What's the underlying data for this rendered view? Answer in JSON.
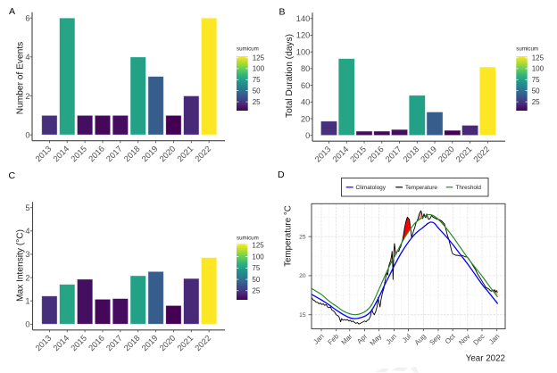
{
  "chart_data": [
    {
      "panel_label": "A",
      "type": "bar",
      "title": "",
      "categories": [
        "2013",
        "2014",
        "2015",
        "2016",
        "2017",
        "2018",
        "2019",
        "2020",
        "2021",
        "2022"
      ],
      "values": [
        1,
        6,
        1,
        1,
        1,
        4,
        3,
        1,
        2,
        6
      ],
      "fill_by": "sumicum",
      "sumicum": [
        22,
        77,
        10,
        7,
        9,
        75,
        41,
        5,
        19,
        128
      ],
      "xlabel": "",
      "ylabel": "Number of Events",
      "ylim": [
        -0.3,
        6.3
      ],
      "yticks": [
        0,
        2,
        4,
        6
      ],
      "grid": false,
      "legend": {
        "title": "sumicum",
        "type": "colorbar",
        "colormap": "viridis",
        "range": [
          5,
          128
        ],
        "ticks": [
          25,
          50,
          75,
          100,
          125
        ],
        "position": "right"
      }
    },
    {
      "panel_label": "B",
      "type": "bar",
      "title": "",
      "categories": [
        "2013",
        "2014",
        "2015",
        "2016",
        "2017",
        "2018",
        "2019",
        "2020",
        "2021",
        "2022"
      ],
      "values": [
        17,
        92,
        5,
        5,
        7,
        48,
        28,
        6,
        12,
        82
      ],
      "fill_by": "sumicum",
      "sumicum": [
        22,
        77,
        10,
        7,
        9,
        75,
        41,
        5,
        19,
        128
      ],
      "xlabel": "",
      "ylabel": "Total Duration (days)",
      "ylim": [
        -7,
        147
      ],
      "yticks": [
        0,
        20,
        40,
        60,
        80,
        100,
        120,
        140
      ],
      "grid": false,
      "legend": {
        "title": "sumicum",
        "type": "colorbar",
        "colormap": "viridis",
        "range": [
          5,
          128
        ],
        "ticks": [
          25,
          50,
          75,
          100,
          125
        ],
        "position": "right"
      }
    },
    {
      "panel_label": "C",
      "type": "bar",
      "title": "",
      "categories": [
        "2013",
        "2014",
        "2015",
        "2016",
        "2017",
        "2018",
        "2019",
        "2020",
        "2021",
        "2022"
      ],
      "values": [
        1.21,
        1.71,
        1.93,
        1.07,
        1.1,
        2.08,
        2.26,
        0.8,
        1.96,
        2.86
      ],
      "fill_by": "sumicum",
      "sumicum": [
        22,
        77,
        10,
        7,
        9,
        75,
        41,
        5,
        19,
        128
      ],
      "xlabel": "",
      "ylabel": "Max Intensity (°C)",
      "ylim": [
        -0.25,
        5.25
      ],
      "yticks": [
        0,
        1,
        2,
        3,
        4,
        5
      ],
      "grid": false,
      "legend": {
        "title": "sumicum",
        "type": "colorbar",
        "colormap": "viridis",
        "range": [
          5,
          128
        ],
        "ticks": [
          25,
          50,
          75,
          100,
          125
        ],
        "position": "right"
      }
    },
    {
      "panel_label": "D",
      "type": "line",
      "title": "",
      "x_origin": "2022-01-01",
      "x_unit": "days",
      "xlabel": "Year 2022",
      "ylabel": "Temperature °C",
      "xlim": [
        -20.4,
        382.2
      ],
      "ylim": [
        13.2,
        29.2
      ],
      "xticks": [
        {
          "day": 0,
          "label": "Jan"
        },
        {
          "day": 31,
          "label": "Feb"
        },
        {
          "day": 59,
          "label": "Mar"
        },
        {
          "day": 90,
          "label": "Apr"
        },
        {
          "day": 120,
          "label": "May"
        },
        {
          "day": 151,
          "label": "Jun"
        },
        {
          "day": 181,
          "label": "Jul"
        },
        {
          "day": 212,
          "label": "Aug"
        },
        {
          "day": 243,
          "label": "Sep"
        },
        {
          "day": 273,
          "label": "Oct"
        },
        {
          "day": 304,
          "label": "Nov"
        },
        {
          "day": 334,
          "label": "Dec"
        },
        {
          "day": 365,
          "label": "Jan"
        }
      ],
      "yticks": [
        15,
        20,
        25
      ],
      "grid": true,
      "legend": {
        "position": "top"
      },
      "series": [
        {
          "name": "Climatology",
          "color": "#0000FF",
          "interpolation": "smooth",
          "points": [
            [
              -20,
              17.6
            ],
            [
              0,
              16.9
            ],
            [
              15,
              16.3
            ],
            [
              31,
              15.6
            ],
            [
              45,
              15.05
            ],
            [
              60,
              14.6
            ],
            [
              70,
              14.5
            ],
            [
              80,
              14.6
            ],
            [
              93,
              14.9
            ],
            [
              105,
              15.6
            ],
            [
              120,
              17.3
            ],
            [
              133,
              19.0
            ],
            [
              143,
              20.2
            ],
            [
              151,
              21.2
            ],
            [
              166,
              22.9
            ],
            [
              181,
              24.3
            ],
            [
              196,
              25.4
            ],
            [
              212,
              26.2
            ],
            [
              222,
              26.7
            ],
            [
              228,
              26.85
            ],
            [
              235,
              26.7
            ],
            [
              243,
              26.1
            ],
            [
              258,
              25.1
            ],
            [
              273,
              24.0
            ],
            [
              289,
              22.7
            ],
            [
              304,
              21.5
            ],
            [
              319,
              20.2
            ],
            [
              334,
              18.9
            ],
            [
              350,
              17.7
            ],
            [
              366,
              16.45
            ]
          ]
        },
        {
          "name": "Temperature",
          "color": "#000000",
          "interpolation": "linear",
          "points": [
            [
              -20,
              17.2
            ],
            [
              -17,
              16.9
            ],
            [
              -14,
              16.8
            ],
            [
              -11,
              16.6
            ],
            [
              -8,
              16.6
            ],
            [
              -5,
              16.4
            ],
            [
              -2,
              16.5
            ],
            [
              1,
              16.3
            ],
            [
              4,
              16.4
            ],
            [
              7,
              16.2
            ],
            [
              10,
              16.3
            ],
            [
              13,
              16.0
            ],
            [
              16,
              15.9
            ],
            [
              19,
              16.0
            ],
            [
              22,
              15.6
            ],
            [
              25,
              15.5
            ],
            [
              28,
              15.3
            ],
            [
              31,
              15.0
            ],
            [
              34,
              14.9
            ],
            [
              37,
              14.7
            ],
            [
              40,
              14.1
            ],
            [
              42,
              14.5
            ],
            [
              45,
              14.3
            ],
            [
              48,
              14.4
            ],
            [
              51,
              14.3
            ],
            [
              54,
              14.4
            ],
            [
              57,
              14.2
            ],
            [
              60,
              14.3
            ],
            [
              63,
              14.1
            ],
            [
              66,
              14.2
            ],
            [
              69,
              14.0
            ],
            [
              72,
              13.9
            ],
            [
              75,
              14.0
            ],
            [
              78,
              13.8
            ],
            [
              81,
              13.9
            ],
            [
              84,
              14.0
            ],
            [
              87,
              14.1
            ],
            [
              90,
              14.2
            ],
            [
              93,
              14.1
            ],
            [
              96,
              14.3
            ],
            [
              99,
              14.4
            ],
            [
              102,
              14.8
            ],
            [
              105,
              15.7
            ],
            [
              107,
              15.3
            ],
            [
              110,
              15.0
            ],
            [
              113,
              15.4
            ],
            [
              116,
              16.1
            ],
            [
              118,
              17.2
            ],
            [
              120,
              16.5
            ],
            [
              122,
              16.0
            ],
            [
              124,
              16.9
            ],
            [
              127,
              17.8
            ],
            [
              130,
              18.4
            ],
            [
              132,
              19.2
            ],
            [
              134,
              19.8
            ],
            [
              136,
              20.4
            ],
            [
              138,
              20.1
            ],
            [
              140,
              21.2
            ],
            [
              142,
              21.6
            ],
            [
              144,
              21.9
            ],
            [
              146,
              22.6
            ],
            [
              147,
              23.1
            ],
            [
              148,
              22.0
            ],
            [
              149,
              19.5
            ],
            [
              150,
              21.5
            ],
            [
              151,
              23.4
            ],
            [
              152,
              24.1
            ],
            [
              153,
              23.6
            ],
            [
              155,
              22.7
            ],
            [
              157,
              23.0
            ],
            [
              159,
              23.2
            ],
            [
              161,
              23.1
            ],
            [
              163,
              23.5
            ],
            [
              165,
              23.7
            ],
            [
              167,
              24.2
            ],
            [
              169,
              24.6
            ],
            [
              171,
              25.3
            ],
            [
              173,
              26.1
            ],
            [
              175,
              26.7
            ],
            [
              177,
              27.2
            ],
            [
              179,
              27.5
            ],
            [
              181,
              27.3
            ],
            [
              183,
              27.2
            ],
            [
              184,
              26.7
            ],
            [
              186,
              25.8
            ],
            [
              187.5,
              24.9
            ],
            [
              190,
              25.4
            ],
            [
              192,
              25.8
            ],
            [
              194,
              26.1
            ],
            [
              197,
              26.8
            ],
            [
              199,
              27.0
            ],
            [
              201,
              27.3
            ],
            [
              203,
              27.8
            ],
            [
              205,
              28.1
            ],
            [
              207,
              28.3
            ],
            [
              209,
              27.9
            ],
            [
              210.5,
              27.3
            ],
            [
              212,
              27.6
            ],
            [
              213.5,
              27.9
            ],
            [
              215,
              27.6
            ],
            [
              217,
              27.4
            ],
            [
              219,
              27.9
            ],
            [
              221,
              27.5
            ],
            [
              223,
              27.2
            ],
            [
              226,
              27.3
            ],
            [
              229,
              27.7
            ],
            [
              232,
              27.5
            ],
            [
              235,
              27.4
            ],
            [
              238,
              27.3
            ],
            [
              241,
              27.2
            ],
            [
              244,
              27.2
            ],
            [
              247,
              27.1
            ],
            [
              250,
              27.0
            ],
            [
              253,
              26.8
            ],
            [
              256,
              26.6
            ],
            [
              259,
              25.9
            ],
            [
              262,
              25.2
            ],
            [
              265,
              24.6
            ],
            [
              268,
              23.9
            ],
            [
              271,
              23.1
            ],
            [
              273,
              22.8
            ],
            [
              276,
              22.7
            ],
            [
              280,
              22.6
            ],
            [
              284,
              22.6
            ],
            [
              288,
              22.5
            ],
            [
              292,
              22.6
            ],
            [
              296,
              22.5
            ],
            [
              300,
              22.4
            ],
            [
              303,
              22.4
            ],
            [
              306,
              22.2
            ],
            [
              309,
              21.9
            ],
            [
              312,
              21.6
            ],
            [
              315,
              21.3
            ],
            [
              318,
              21.0
            ],
            [
              321,
              20.7
            ],
            [
              324,
              20.3
            ],
            [
              327,
              20.0
            ],
            [
              330,
              19.7
            ],
            [
              333,
              19.4
            ],
            [
              336,
              19.1
            ],
            [
              339,
              18.8
            ],
            [
              342,
              18.5
            ],
            [
              345,
              18.4
            ],
            [
              348,
              18.3
            ],
            [
              351,
              18.1
            ],
            [
              354,
              18.0
            ],
            [
              356,
              18.2
            ],
            [
              358,
              18.0
            ],
            [
              360,
              18.2
            ],
            [
              362,
              17.9
            ],
            [
              364,
              18.1
            ],
            [
              366,
              17.9
            ]
          ]
        },
        {
          "name": "Threshold",
          "color": "#228B22",
          "interpolation": "smooth",
          "points": [
            [
              -20,
              18.35
            ],
            [
              0,
              17.6
            ],
            [
              15,
              16.8
            ],
            [
              31,
              16.1
            ],
            [
              45,
              15.5
            ],
            [
              60,
              15.1
            ],
            [
              70,
              15.0
            ],
            [
              80,
              15.1
            ],
            [
              93,
              15.5
            ],
            [
              105,
              16.3
            ],
            [
              120,
              18.3
            ],
            [
              133,
              20.1
            ],
            [
              143,
              21.4
            ],
            [
              151,
              22.3
            ],
            [
              166,
              24.1
            ],
            [
              181,
              25.6
            ],
            [
              196,
              26.8
            ],
            [
              212,
              27.5
            ],
            [
              222,
              27.8
            ],
            [
              232,
              27.7
            ],
            [
              243,
              27.2
            ],
            [
              258,
              26.2
            ],
            [
              273,
              25.0
            ],
            [
              289,
              23.6
            ],
            [
              304,
              22.3
            ],
            [
              319,
              21.1
            ],
            [
              334,
              19.95
            ],
            [
              350,
              18.6
            ],
            [
              366,
              17.3
            ]
          ]
        }
      ],
      "exceedance_fill": {
        "upper": "Temperature",
        "lower": "Threshold",
        "peak_event_days": [
          168,
          192
        ],
        "peak_color": "#FF0000",
        "other_color": "#F4978A"
      }
    }
  ]
}
